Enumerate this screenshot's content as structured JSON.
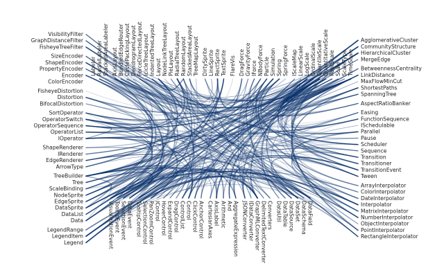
{
  "diagram": {
    "type": "hierarchical-edge-bundling",
    "link_color": "#08306b",
    "label_color": "#222222",
    "groups": [
      {
        "nodes": [
          "AxisLabel",
          "CartesianAxes"
        ]
      },
      {
        "nodes": [
          "AnchorControl",
          "ClickControl",
          "Control",
          "ControlList",
          "DragControl",
          "ExpandControl",
          "HoverControl",
          "IControl",
          "PanZoomControl",
          "SelectionControl",
          "TooltipControl"
        ]
      },
      {
        "nodes": [
          "DataEvent",
          "SelectionEvent",
          "TooltipEvent",
          "VisualizationEvent"
        ]
      },
      {
        "nodes": [
          "Legend",
          "LegendItem",
          "LegendRange"
        ]
      },
      {
        "nodes": [
          "Data",
          "DataList",
          "DataSprite",
          "EdgeSprite",
          "NodeSprite",
          "ScaleBinding",
          "Tree",
          "TreeBuilder"
        ]
      },
      {
        "nodes": [
          "ArrowType",
          "EdgeRenderer",
          "IRenderer",
          "ShapeRenderer"
        ]
      },
      {
        "nodes": [
          "IOperator",
          "OperatorList",
          "OperatorSequence",
          "OperatorSwitch",
          "SortOperator"
        ]
      },
      {
        "nodes": [
          "BifocalDistortion",
          "Distortion",
          "FisheyeDistortion"
        ]
      },
      {
        "nodes": [
          "ColorEncoder",
          "Encoder",
          "PropertyEncoder",
          "ShapeEncoder",
          "SizeEncoder"
        ]
      },
      {
        "nodes": [
          "FisheyeTreeFilter",
          "GraphDistanceFilter",
          "VisibilityFilter"
        ]
      },
      {
        "nodes": [
          "Labeler",
          "RadialLabeler",
          "StackedAreaLabeler"
        ]
      },
      {
        "nodes": [
          "AxisLayout",
          "BundledEdgeRouter",
          "CirclePackingLayout",
          "DendrogramLayout",
          "ForceDirectedLayout",
          "IcicleTreeLayout",
          "IndentedTreeLayout",
          "Layout",
          "NodeLinkTreeLayout",
          "PieLayout",
          "RadialTreeLayout",
          "RandomLayout",
          "StackedAreaLayout",
          "TreeMapLayout"
        ]
      },
      {
        "nodes": [
          "DirtySprite",
          "LineSprite",
          "RectSprite",
          "TextSprite"
        ]
      },
      {
        "nodes": [
          "FlareVis"
        ]
      },
      {
        "nodes": [
          "DragForce",
          "GravityForce",
          "IForce",
          "NBodyForce",
          "Particle",
          "Simulation",
          "Spring",
          "SpringForce"
        ]
      },
      {
        "nodes": [
          "IScaleMap",
          "LinearScale",
          "LogScale",
          "OrdinalScale",
          "QuantileScale",
          "QuantitativeScale",
          "RootScale",
          "Scale",
          "ScaleType",
          "TimeScale"
        ]
      },
      {
        "nodes": [
          "AgglomerativeCluster",
          "CommunityStructure",
          "HierarchicalCluster",
          "MergeEdge"
        ]
      },
      {
        "nodes": [
          "BetweennessCentrality",
          "LinkDistance",
          "MaxFlowMinCut",
          "ShortestPaths",
          "SpanningTree"
        ]
      },
      {
        "nodes": [
          "AspectRatioBanker"
        ]
      },
      {
        "nodes": [
          "Easing",
          "FunctionSequence",
          "ISchedulable",
          "Parallel",
          "Pause",
          "Scheduler",
          "Sequence",
          "Transition",
          "Transitioner",
          "TransitionEvent",
          "Tween"
        ]
      },
      {
        "nodes": [
          "ArrayInterpolator",
          "ColorInterpolator",
          "DateInterpolator",
          "Interpolator",
          "MatrixInterpolator",
          "NumberInterpolator",
          "ObjectInterpolator",
          "PointInterpolator",
          "RectangleInterpolator"
        ]
      },
      {
        "nodes": [
          "DataField",
          "DataSchema",
          "DataSet",
          "DataSource",
          "DataTable",
          "DataUtil"
        ]
      },
      {
        "nodes": [
          "Converters",
          "DelimitedTextConverter",
          "GraphMLConverter",
          "IDataConverter",
          "JSONConverter"
        ]
      },
      {
        "nodes": [
          "AggregateExpression",
          "And",
          "Arithmetic"
        ]
      }
    ]
  }
}
